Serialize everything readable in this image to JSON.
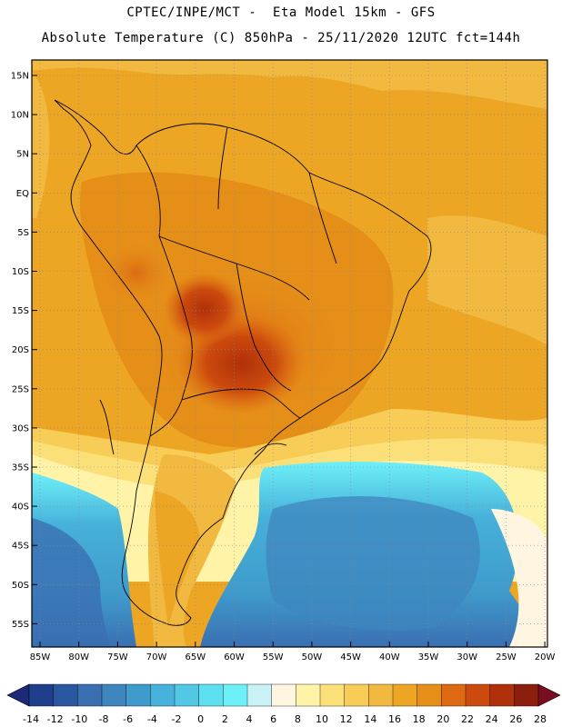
{
  "header": {
    "line1": "CPTEC/INPE/MCT -  Eta Model 15km - GFS",
    "line2": "Absolute Temperature (C) 850hPa - 25/11/2020 12UTC fct=144h"
  },
  "map": {
    "lat_labels": [
      "15N",
      "10N",
      "5N",
      "EQ",
      "5S",
      "10S",
      "15S",
      "20S",
      "25S",
      "30S",
      "35S",
      "40S",
      "45S",
      "50S",
      "55S"
    ],
    "lon_labels": [
      "85W",
      "80W",
      "75W",
      "70W",
      "65W",
      "60W",
      "55W",
      "50W",
      "45W",
      "40W",
      "35W",
      "30W",
      "25W",
      "20W"
    ]
  },
  "colorbar": {
    "labels": [
      "-14",
      "-12",
      "-10",
      "-8",
      "-6",
      "-4",
      "-2",
      "0",
      "2",
      "4",
      "6",
      "8",
      "10",
      "12",
      "14",
      "16",
      "18",
      "20",
      "22",
      "24",
      "26",
      "28"
    ],
    "colors": [
      "#1f3f8c",
      "#2a58a0",
      "#3a6fb2",
      "#3f86bf",
      "#3f9bcc",
      "#46b1da",
      "#52c7e6",
      "#5ee0f0",
      "#6ef0f8",
      "#c9f2f7",
      "#fff5e0",
      "#fff3a8",
      "#fbe07a",
      "#f7cd57",
      "#f2b940",
      "#eca624",
      "#e58e18",
      "#dd6a12",
      "#cc4a0d",
      "#b0300a",
      "#8c1e0e"
    ],
    "under_color": "#1a2a78",
    "over_color": "#7a0e20"
  }
}
